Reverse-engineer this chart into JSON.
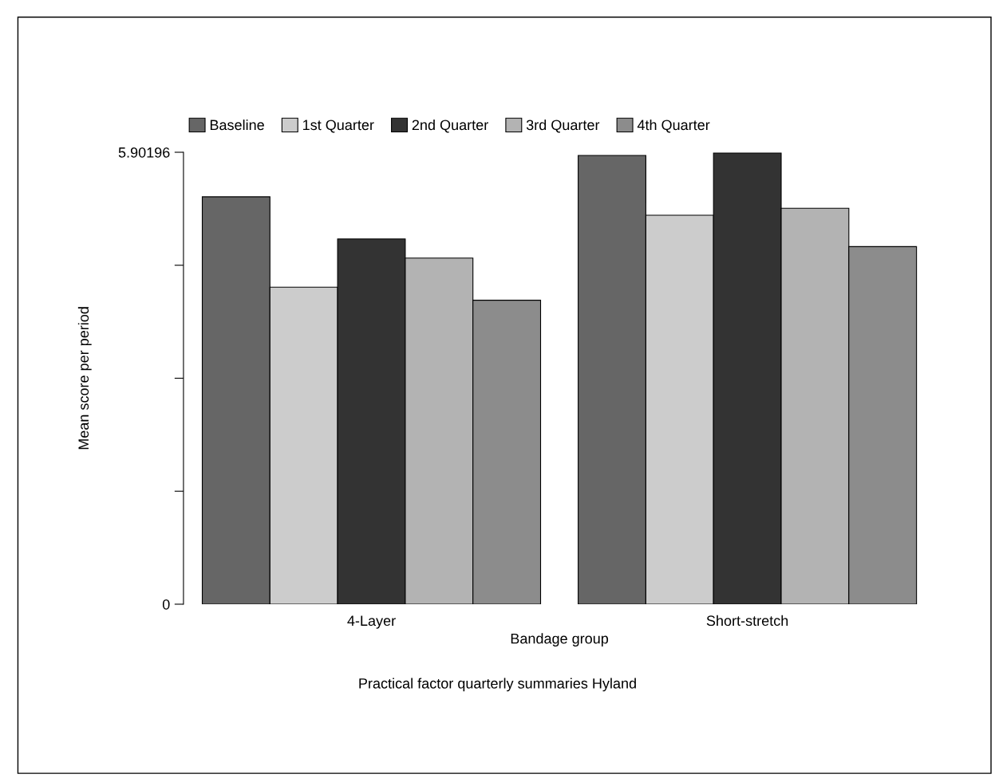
{
  "chart_data": {
    "type": "bar",
    "categories": [
      "4-Layer",
      "Short-stretch"
    ],
    "series": [
      {
        "name": "Baseline",
        "color": "#666666",
        "values": [
          5.32,
          5.86
        ]
      },
      {
        "name": "1st Quarter",
        "color": "#cccccc",
        "values": [
          4.14,
          5.08
        ]
      },
      {
        "name": "2nd Quarter",
        "color": "#333333",
        "values": [
          4.77,
          5.89
        ]
      },
      {
        "name": "3rd Quarter",
        "color": "#b3b3b3",
        "values": [
          4.52,
          5.17
        ]
      },
      {
        "name": "4th Quarter",
        "color": "#8c8c8c",
        "values": [
          3.97,
          4.67
        ]
      }
    ],
    "xlabel": "Bandage group",
    "ylabel": "Mean score per period",
    "ylim": [
      0,
      5.90196
    ],
    "yticks": [
      0,
      {
        "value": 1.47549,
        "label": null
      },
      {
        "value": 2.95098,
        "label": null
      },
      {
        "value": 4.42647,
        "label": null
      },
      5.90196
    ],
    "annotations": [
      "Practical factor quarterly summaries Hyland"
    ],
    "legend": "top",
    "grid": false
  }
}
